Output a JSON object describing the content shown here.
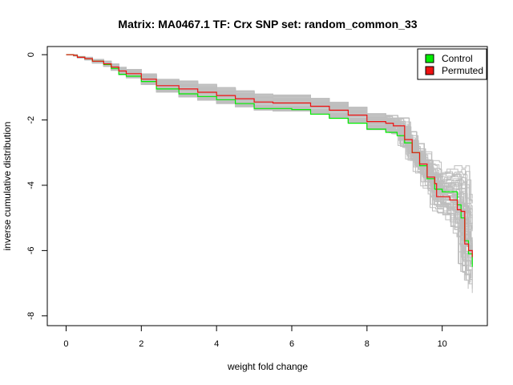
{
  "chart_data": {
    "type": "line",
    "title": "Matrix: MA0467.1 TF: Crx SNP set: random_common_33",
    "xlabel": "weight fold change",
    "ylabel": "inverse cumulative distribution",
    "xlim": [
      -0.5,
      11.2
    ],
    "ylim": [
      -8.3,
      0.25
    ],
    "xticks": [
      "0",
      "2",
      "4",
      "6",
      "8",
      "10"
    ],
    "yticks": [
      "0",
      "-2",
      "-4",
      "-6",
      "-8"
    ],
    "legend": {
      "position": "top-right",
      "entries": [
        {
          "label": "Control",
          "color": "#00ee00"
        },
        {
          "label": "Permuted",
          "color": "#ee1111"
        }
      ]
    },
    "background_color": "#bebebe",
    "series": [
      {
        "name": "Control",
        "color": "#00ee00",
        "x": [
          0,
          0.2,
          0.3,
          0.5,
          0.7,
          1.0,
          1.2,
          1.4,
          1.6,
          2.0,
          2.4,
          3.0,
          3.5,
          4.0,
          4.5,
          5.0,
          6.0,
          6.5,
          7.0,
          7.5,
          8.0,
          8.5,
          8.8,
          9.0,
          9.2,
          9.4,
          9.6,
          9.8,
          10.0,
          10.2,
          10.4,
          10.5,
          10.6,
          10.7,
          10.8
        ],
        "y": [
          0,
          -0.02,
          -0.08,
          -0.12,
          -0.2,
          -0.3,
          -0.42,
          -0.6,
          -0.66,
          -0.82,
          -1.05,
          -1.2,
          -1.28,
          -1.38,
          -1.5,
          -1.65,
          -1.68,
          -1.82,
          -1.95,
          -2.1,
          -2.28,
          -2.38,
          -2.48,
          -2.7,
          -3.0,
          -3.4,
          -3.8,
          -4.12,
          -4.2,
          -4.2,
          -4.6,
          -5.0,
          -5.7,
          -6.1,
          -6.5
        ]
      },
      {
        "name": "Permuted",
        "color": "#ee1111",
        "x": [
          0,
          0.2,
          0.3,
          0.5,
          0.7,
          1.0,
          1.2,
          1.4,
          1.6,
          2.0,
          2.4,
          3.0,
          3.5,
          4.0,
          4.5,
          5.0,
          5.5,
          6.0,
          6.5,
          7.0,
          7.5,
          8.0,
          8.5,
          8.7,
          9.0,
          9.2,
          9.4,
          9.6,
          9.8,
          9.85,
          10.0,
          10.2,
          10.4,
          10.5,
          10.6,
          10.7,
          10.8
        ],
        "y": [
          0,
          -0.02,
          -0.08,
          -0.12,
          -0.2,
          -0.28,
          -0.38,
          -0.5,
          -0.58,
          -0.75,
          -0.95,
          -1.05,
          -1.15,
          -1.25,
          -1.35,
          -1.45,
          -1.48,
          -1.48,
          -1.58,
          -1.7,
          -1.85,
          -2.05,
          -2.1,
          -2.18,
          -2.6,
          -3.0,
          -3.35,
          -3.75,
          -3.95,
          -4.35,
          -4.35,
          -4.45,
          -4.75,
          -4.8,
          -5.8,
          -6.0,
          -6.2
        ]
      }
    ]
  }
}
